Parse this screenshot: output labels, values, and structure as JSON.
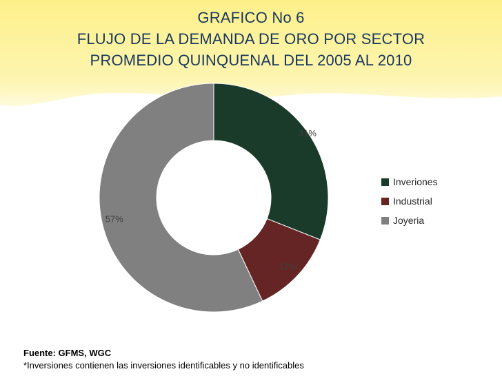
{
  "title": {
    "line1": "GRAFICO No 6",
    "line2": "FLUJO DE LA DEMANDA DE ORO POR SECTOR",
    "line3": "PROMEDIO QUINQUENAL DEL 2005 AL 2010"
  },
  "chart_data": {
    "type": "pie",
    "variant": "doughnut",
    "categories": [
      "Inveriones",
      "Industrial",
      "Joyeria"
    ],
    "values": [
      31,
      12,
      57
    ],
    "labels": [
      "31%",
      "12%",
      "57%"
    ],
    "colors": [
      "#1a3a2a",
      "#652525",
      "#808080"
    ],
    "legend_position": "right"
  },
  "legend": {
    "items": [
      {
        "label": "Inveriones",
        "color": "#1a3a2a"
      },
      {
        "label": "Industrial",
        "color": "#652525"
      },
      {
        "label": "Joyeria",
        "color": "#808080"
      }
    ]
  },
  "footer": {
    "source": "Fuente: GFMS, WGC",
    "note": "*Inversiones contienen las inversiones identificables y no identificables"
  },
  "colors": {
    "title": "#17375e",
    "banner": "#fdf3a0"
  }
}
